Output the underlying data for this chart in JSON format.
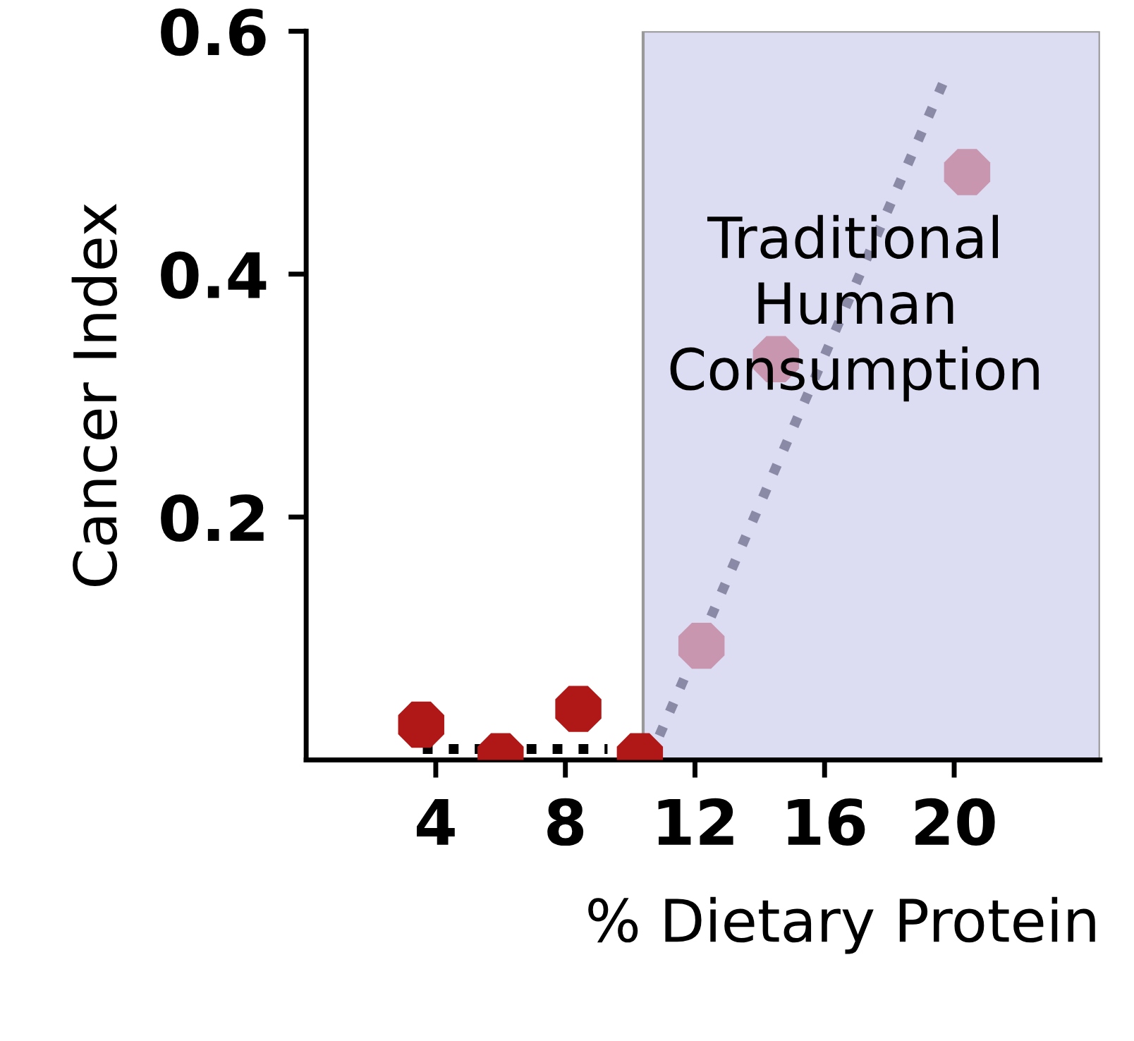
{
  "chart_data": {
    "type": "scatter",
    "xlabel": "% Dietary Protein",
    "ylabel": "Cancer Index",
    "xlim": [
      0,
      24.5
    ],
    "ylim": [
      0,
      0.6
    ],
    "xticks": [
      4,
      8,
      12,
      16,
      20
    ],
    "yticks": [
      {
        "value": 0.2,
        "label": "0.2"
      },
      {
        "value": 0.4,
        "label": "0.4"
      },
      {
        "value": 0.6,
        "label": "0.6"
      }
    ],
    "grid": false,
    "series": [
      {
        "marker": "circle",
        "x": [
          3.55,
          6,
          8.4,
          10.3,
          12.2,
          14.5,
          20.4
        ],
        "values": [
          0.029,
          0.003,
          0.042,
          0.003,
          0.094,
          0.33,
          0.484
        ],
        "colors": [
          "#b01818",
          "#b01818",
          "#b01818",
          "#b01818",
          "#c896ae",
          "#c896ae",
          "#c896ae"
        ]
      },
      {
        "type": "line",
        "x": [
          3.6,
          9.3
        ],
        "values": [
          0.009,
          0.009
        ],
        "color": "#000000",
        "line_style": "dotted"
      },
      {
        "type": "line",
        "x": [
          10.9,
          19.7
        ],
        "values": [
          0.02,
          0.56
        ],
        "color": "#8a8aa6",
        "line_style": "dotted"
      }
    ],
    "bands": [
      {
        "axis": "x",
        "from": 10.4,
        "to": 24.5,
        "label": "Traditional\nHuman\nConsumption",
        "color": "#dcdcf2"
      }
    ]
  }
}
